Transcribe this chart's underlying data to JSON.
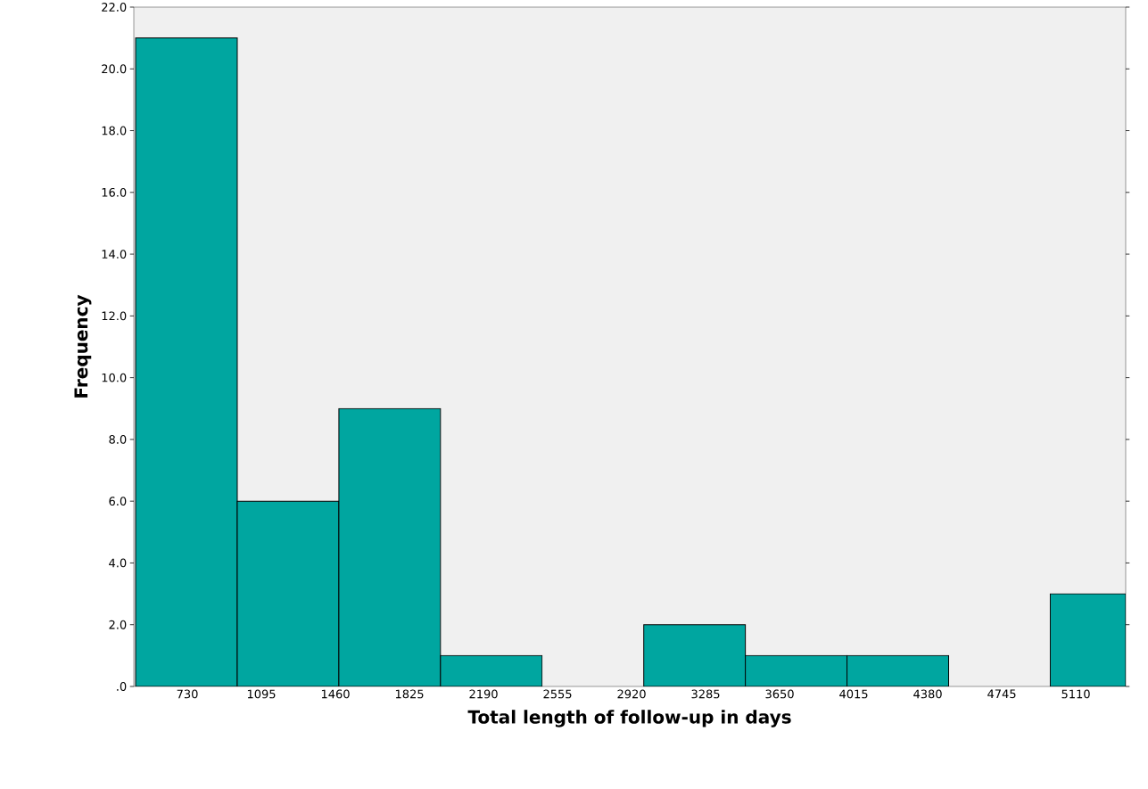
{
  "chart_data": {
    "type": "histogram",
    "xlabel": "Total length of follow-up in days",
    "ylabel": "Frequency",
    "bins": [
      475,
      976,
      1477,
      1978,
      2479,
      2980,
      3481,
      3982,
      4483,
      4984,
      5356
    ],
    "values": [
      21,
      6,
      9,
      1,
      0,
      2,
      1,
      1,
      0,
      3
    ],
    "color": "#00a6a0",
    "xlim": [
      466,
      5356
    ],
    "xticks": [
      730,
      1095,
      1460,
      1825,
      2190,
      2555,
      2920,
      3285,
      3650,
      4015,
      4380,
      4745,
      5110
    ],
    "ylim": [
      0,
      22
    ],
    "yticks": [
      {
        "value": 0,
        "label": ".0"
      },
      {
        "value": 2,
        "label": "2.0"
      },
      {
        "value": 4,
        "label": "4.0"
      },
      {
        "value": 6,
        "label": "6.0"
      },
      {
        "value": 8,
        "label": "8.0"
      },
      {
        "value": 10,
        "label": "10.0"
      },
      {
        "value": 12,
        "label": "12.0"
      },
      {
        "value": 14,
        "label": "14.0"
      },
      {
        "value": 16,
        "label": "16.0"
      },
      {
        "value": 18,
        "label": "18.0"
      },
      {
        "value": 20,
        "label": "20.0"
      },
      {
        "value": 22,
        "label": "22.0"
      }
    ],
    "grid": false
  }
}
